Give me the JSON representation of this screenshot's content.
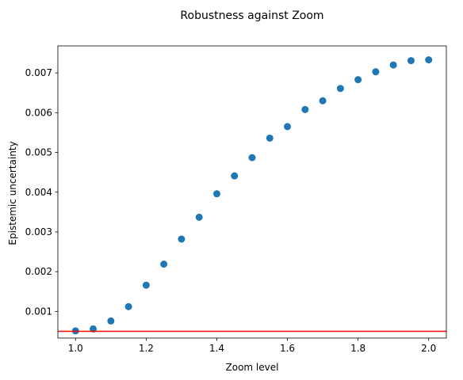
{
  "chart_data": {
    "type": "scatter",
    "title": "Robustness against Zoom",
    "xlabel": "Zoom level",
    "ylabel": "Epistemic uncertainty",
    "xlim": [
      0.95,
      2.05
    ],
    "ylim": [
      0.00033,
      0.00768
    ],
    "xticks": [
      1.0,
      1.2,
      1.4,
      1.6,
      1.8,
      2.0
    ],
    "xtick_labels": [
      "1.0",
      "1.2",
      "1.4",
      "1.6",
      "1.8",
      "2.0"
    ],
    "yticks": [
      0.001,
      0.002,
      0.003,
      0.004,
      0.005,
      0.006,
      0.007
    ],
    "ytick_labels": [
      "0.001",
      "0.002",
      "0.003",
      "0.004",
      "0.005",
      "0.006",
      "0.007"
    ],
    "grid": false,
    "series": [
      {
        "color": "#1f77b4",
        "x": [
          1.0,
          1.05,
          1.1,
          1.15,
          1.2,
          1.25,
          1.3,
          1.35,
          1.4,
          1.45,
          1.5,
          1.55,
          1.6,
          1.65,
          1.7,
          1.75,
          1.8,
          1.85,
          1.9,
          1.95,
          2.0
        ],
        "y": [
          0.00051,
          0.00056,
          0.00076,
          0.00112,
          0.00166,
          0.00219,
          0.00282,
          0.00337,
          0.00396,
          0.00441,
          0.00487,
          0.00536,
          0.00565,
          0.00608,
          0.0063,
          0.00661,
          0.00683,
          0.00703,
          0.0072,
          0.00731,
          0.00733
        ]
      }
    ],
    "hline": {
      "y": 0.0005,
      "color": "#ff0000"
    }
  }
}
